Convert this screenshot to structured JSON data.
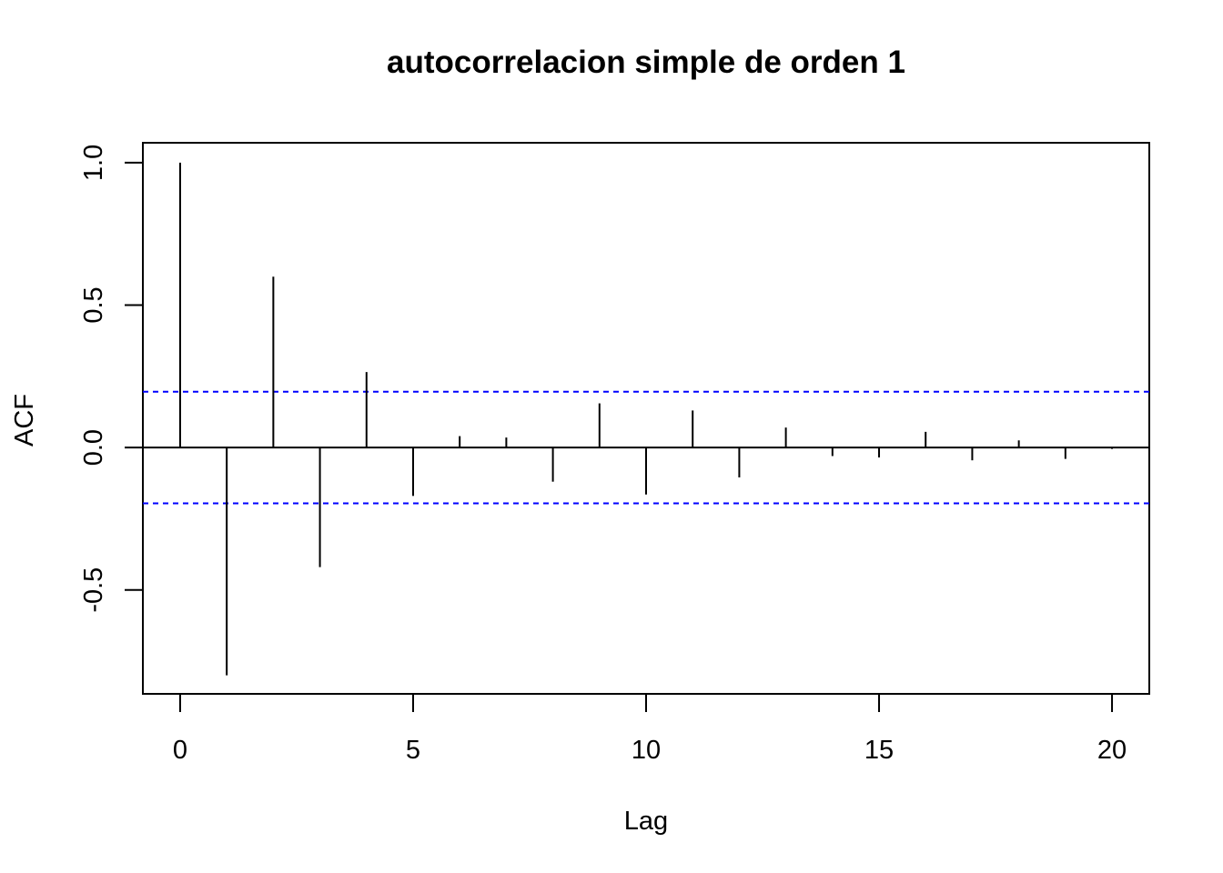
{
  "chart_data": {
    "type": "bar",
    "title": "autocorrelacion simple de orden 1",
    "xlabel": "Lag",
    "ylabel": "ACF",
    "x": [
      0,
      1,
      2,
      3,
      4,
      5,
      6,
      7,
      8,
      9,
      10,
      11,
      12,
      13,
      14,
      15,
      16,
      17,
      18,
      19,
      20
    ],
    "values": [
      1.0,
      -0.8,
      0.6,
      -0.42,
      0.265,
      -0.17,
      0.04,
      0.035,
      -0.12,
      0.155,
      -0.165,
      0.13,
      -0.105,
      0.07,
      -0.03,
      -0.035,
      0.055,
      -0.045,
      0.025,
      -0.04,
      -0.005
    ],
    "confidence_limits": [
      0.196,
      -0.196
    ],
    "xlim": [
      -0.8,
      20.8
    ],
    "ylim": [
      -0.865,
      1.07
    ],
    "x_ticks": [
      0,
      5,
      10,
      15,
      20
    ],
    "x_tick_labels": [
      "0",
      "5",
      "10",
      "15",
      "20"
    ],
    "y_ticks": [
      -0.5,
      0.0,
      0.5,
      1.0
    ],
    "y_tick_labels": [
      "-0.5",
      "0.0",
      "0.5",
      "1.0"
    ],
    "grid": false,
    "colors": {
      "spikes": "#000000",
      "confidence": "#0000ff",
      "zero_line": "#000000"
    }
  }
}
